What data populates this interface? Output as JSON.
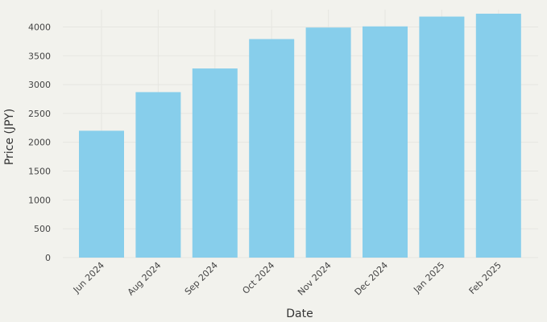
{
  "chart_data": {
    "type": "bar",
    "categories": [
      "Jun 2024",
      "Aug 2024",
      "Sep 2024",
      "Oct 2024",
      "Nov 2024",
      "Dec 2024",
      "Jan 2025",
      "Feb 2025"
    ],
    "values": [
      2200,
      2870,
      3280,
      3790,
      3990,
      4010,
      4180,
      4230
    ],
    "xlabel": "Date",
    "ylabel": "Price (JPY)",
    "ylim": [
      0,
      4300
    ],
    "yticks": [
      0,
      500,
      1000,
      1500,
      2000,
      2500,
      3000,
      3500,
      4000
    ],
    "grid": true,
    "bar_color": "#87ceeb",
    "background": "#f2f2ed",
    "grid_color": "#e6e6e1"
  }
}
